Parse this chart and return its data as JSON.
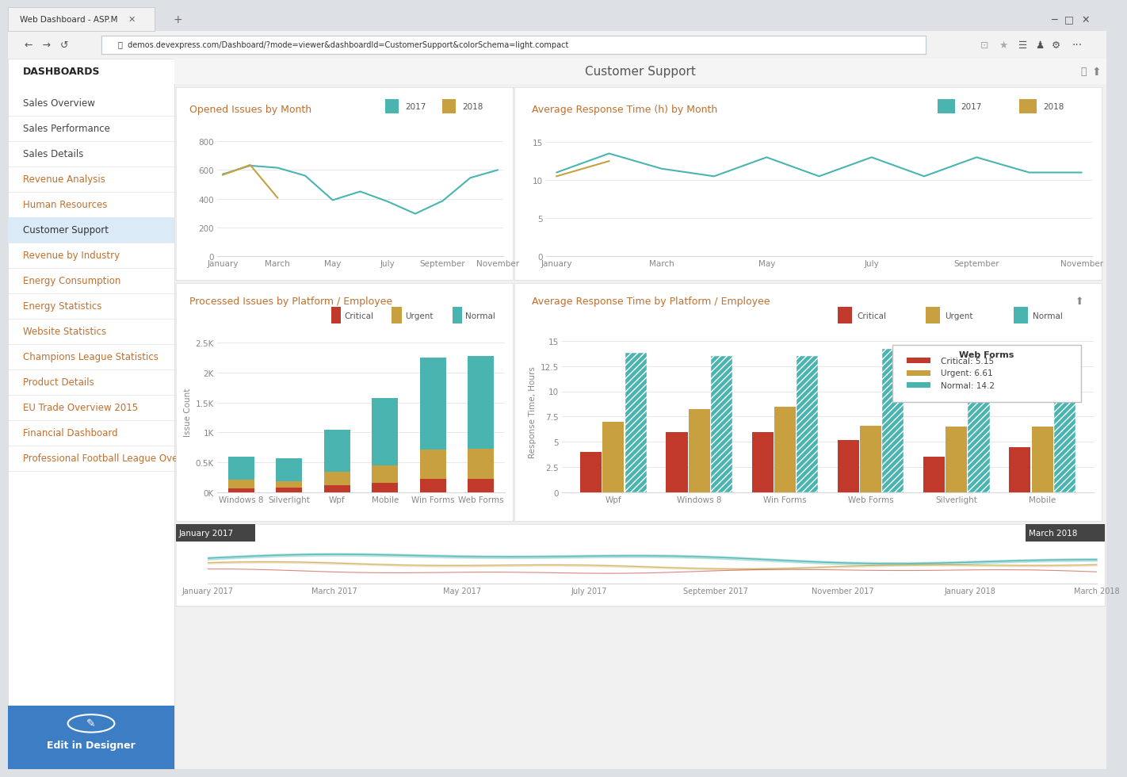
{
  "browser_title": "Web Dashboard - ASP.M",
  "browser_url": "demos.devexpress.com/Dashboard/?mode=viewer&dashboardId=CustomerSupport&colorSchema=light.compact",
  "page_title": "Customer Support",
  "sidebar_title": "DASHBOARDS",
  "sidebar_items": [
    "Sales Overview",
    "Sales Performance",
    "Sales Details",
    "Revenue Analysis",
    "Human Resources",
    "Customer Support",
    "Revenue by Industry",
    "Energy Consumption",
    "Energy Statistics",
    "Website Statistics",
    "Champions League Statistics",
    "Product Details",
    "EU Trade Overview 2015",
    "Financial Dashboard",
    "Professional Football League Overview"
  ],
  "sidebar_active": "Customer Support",
  "sidebar_orange_items": [
    "Revenue Analysis",
    "Human Resources",
    "Revenue by Industry",
    "Energy Consumption",
    "Energy Statistics",
    "Website Statistics",
    "Champions League Statistics",
    "Product Details",
    "EU Trade Overview 2015",
    "Financial Dashboard",
    "Professional Football League Overview"
  ],
  "chart1_title": "Opened Issues by Month",
  "chart1_months": [
    "January",
    "March",
    "May",
    "July",
    "September",
    "November"
  ],
  "chart1_2017": [
    570,
    630,
    615,
    560,
    390,
    450,
    380,
    295,
    385,
    545,
    600
  ],
  "chart1_2018": [
    565,
    635,
    405
  ],
  "chart1_yticks": [
    0,
    200,
    400,
    600,
    800
  ],
  "chart1_color_2017": "#4ab5b0",
  "chart1_color_2018": "#c8a040",
  "chart2_title": "Average Response Time (h) by Month",
  "chart2_months": [
    "January",
    "March",
    "May",
    "July",
    "September",
    "November"
  ],
  "chart2_2017": [
    11.0,
    13.5,
    11.5,
    10.5,
    13.0,
    10.5,
    13.0,
    10.5,
    13.0,
    11.0,
    11.0
  ],
  "chart2_2018": [
    10.5,
    12.5
  ],
  "chart2_yticks": [
    0,
    5,
    10,
    15
  ],
  "chart2_color_2017": "#4ab5b0",
  "chart2_color_2018": "#c8a040",
  "chart3_title": "Processed Issues by Platform / Employee",
  "chart3_platforms": [
    "Windows 8",
    "Silverlight",
    "Wpf",
    "Mobile",
    "Win Forms",
    "Web Forms"
  ],
  "chart3_critical": [
    70,
    75,
    120,
    160,
    230,
    230
  ],
  "chart3_urgent": [
    140,
    110,
    230,
    290,
    480,
    500
  ],
  "chart3_normal": [
    380,
    385,
    700,
    1120,
    1540,
    1550
  ],
  "chart3_yticks": [
    "0K",
    "0.5K",
    "1K",
    "1.5K",
    "2K",
    "2.5K"
  ],
  "chart3_yvals": [
    0,
    500,
    1000,
    1500,
    2000,
    2500
  ],
  "chart3_color_critical": "#c0392b",
  "chart3_color_urgent": "#c8a040",
  "chart3_color_normal": "#4ab5b0",
  "chart3_ylabel": "Issue Count",
  "chart4_title": "Average Response Time by Platform / Employee",
  "chart4_platforms": [
    "Wpf",
    "Windows 8",
    "Win Forms",
    "Web Forms",
    "Silverlight",
    "Mobile"
  ],
  "chart4_critical": [
    4.0,
    6.0,
    6.0,
    5.15,
    3.5,
    4.5
  ],
  "chart4_urgent": [
    7.0,
    8.2,
    8.5,
    6.61,
    6.5,
    6.5
  ],
  "chart4_normal": [
    13.8,
    13.5,
    13.5,
    14.2,
    13.5,
    13.8
  ],
  "chart4_yticks": [
    0,
    2.5,
    5,
    7.5,
    10,
    12.5,
    15
  ],
  "chart4_color_critical": "#c0392b",
  "chart4_color_urgent": "#c8a040",
  "chart4_color_normal": "#4ab5b0",
  "chart4_ylabel": "Response Time, Hours",
  "chart4_tooltip_title": "Web Forms",
  "chart4_tooltip_critical": "Critical: 5.15",
  "chart4_tooltip_urgent": "Urgent: 6.61",
  "chart4_tooltip_normal": "Normal: 14.2",
  "timeline_label_left": "January 2017",
  "timeline_label_right": "March 2018",
  "timeline_months": [
    "January 2017",
    "March 2017",
    "May 2017",
    "July 2017",
    "September 2017",
    "November 2017",
    "January 2018",
    "March 2018"
  ],
  "bg_color": "#f0f0f0",
  "panel_bg": "#ffffff",
  "sidebar_bg": "#ffffff",
  "sidebar_active_bg": "#daeaf7",
  "chart_title_color": "#c07030",
  "text_color": "#555555",
  "grid_color": "#e8e8e8",
  "browser_tab_bg": "#dde1e6",
  "browser_addr_bg": "#f2f2f2"
}
